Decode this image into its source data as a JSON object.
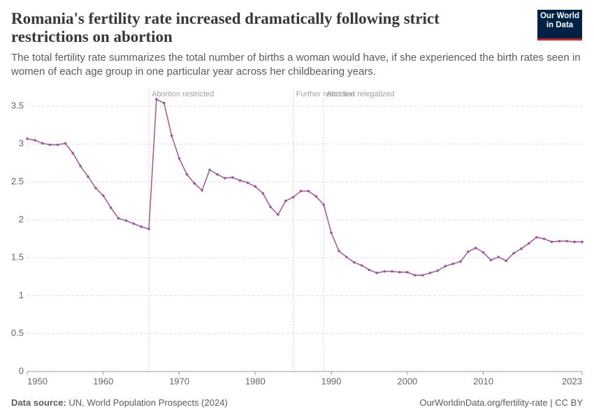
{
  "chart_data": {
    "type": "line",
    "title": "Romania's fertility rate increased dramatically following strict restrictions on abortion",
    "subtitle": "The total fertility rate summarizes the total number of births a woman would have, if she experienced the birth rates seen in women of each age group in one particular year across her childbearing years.",
    "logo": [
      "Our World",
      "in Data"
    ],
    "source_label": "Data source:",
    "source": "UN, World Population Prospects (2024)",
    "credit": "OurWorldinData.org/fertility-rate | CC BY",
    "x": [
      1950,
      1951,
      1952,
      1953,
      1954,
      1955,
      1956,
      1957,
      1958,
      1959,
      1960,
      1961,
      1962,
      1963,
      1964,
      1965,
      1966,
      1967,
      1968,
      1969,
      1970,
      1971,
      1972,
      1973,
      1974,
      1975,
      1976,
      1977,
      1978,
      1979,
      1980,
      1981,
      1982,
      1983,
      1984,
      1985,
      1986,
      1987,
      1988,
      1989,
      1990,
      1991,
      1992,
      1993,
      1994,
      1995,
      1996,
      1997,
      1998,
      1999,
      2000,
      2001,
      2002,
      2003,
      2004,
      2005,
      2006,
      2007,
      2008,
      2009,
      2010,
      2011,
      2012,
      2013,
      2014,
      2015,
      2016,
      2017,
      2018,
      2019,
      2020,
      2021,
      2022,
      2023
    ],
    "series": [
      {
        "name": "Romania",
        "color": "#a2559c",
        "values": [
          3.07,
          3.05,
          3.01,
          2.99,
          2.99,
          3.01,
          2.88,
          2.71,
          2.57,
          2.42,
          2.32,
          2.16,
          2.02,
          1.99,
          1.95,
          1.91,
          1.88,
          3.59,
          3.54,
          3.11,
          2.81,
          2.6,
          2.48,
          2.39,
          2.66,
          2.6,
          2.55,
          2.56,
          2.52,
          2.49,
          2.44,
          2.35,
          2.17,
          2.07,
          2.25,
          2.3,
          2.38,
          2.38,
          2.31,
          2.2,
          1.83,
          1.59,
          1.51,
          1.44,
          1.4,
          1.34,
          1.3,
          1.32,
          1.32,
          1.31,
          1.31,
          1.27,
          1.27,
          1.3,
          1.33,
          1.39,
          1.42,
          1.45,
          1.58,
          1.63,
          1.57,
          1.47,
          1.51,
          1.46,
          1.56,
          1.62,
          1.69,
          1.77,
          1.75,
          1.71,
          1.72,
          1.72,
          1.71,
          1.71
        ]
      }
    ],
    "xlim": [
      1950,
      2023
    ],
    "xticks": [
      1950,
      1960,
      1970,
      1980,
      1990,
      2000,
      2010,
      2023
    ],
    "ylim": [
      0,
      3.5
    ],
    "yticks": [
      0,
      0.5,
      1,
      1.5,
      2,
      2.5,
      3,
      3.5
    ],
    "grid": true,
    "annotations": [
      {
        "x": 1966,
        "label": "Abortion restricted"
      },
      {
        "x": 1985,
        "label": "Further restricted"
      },
      {
        "x": 1989,
        "label": "Abortion relegalized"
      }
    ]
  }
}
